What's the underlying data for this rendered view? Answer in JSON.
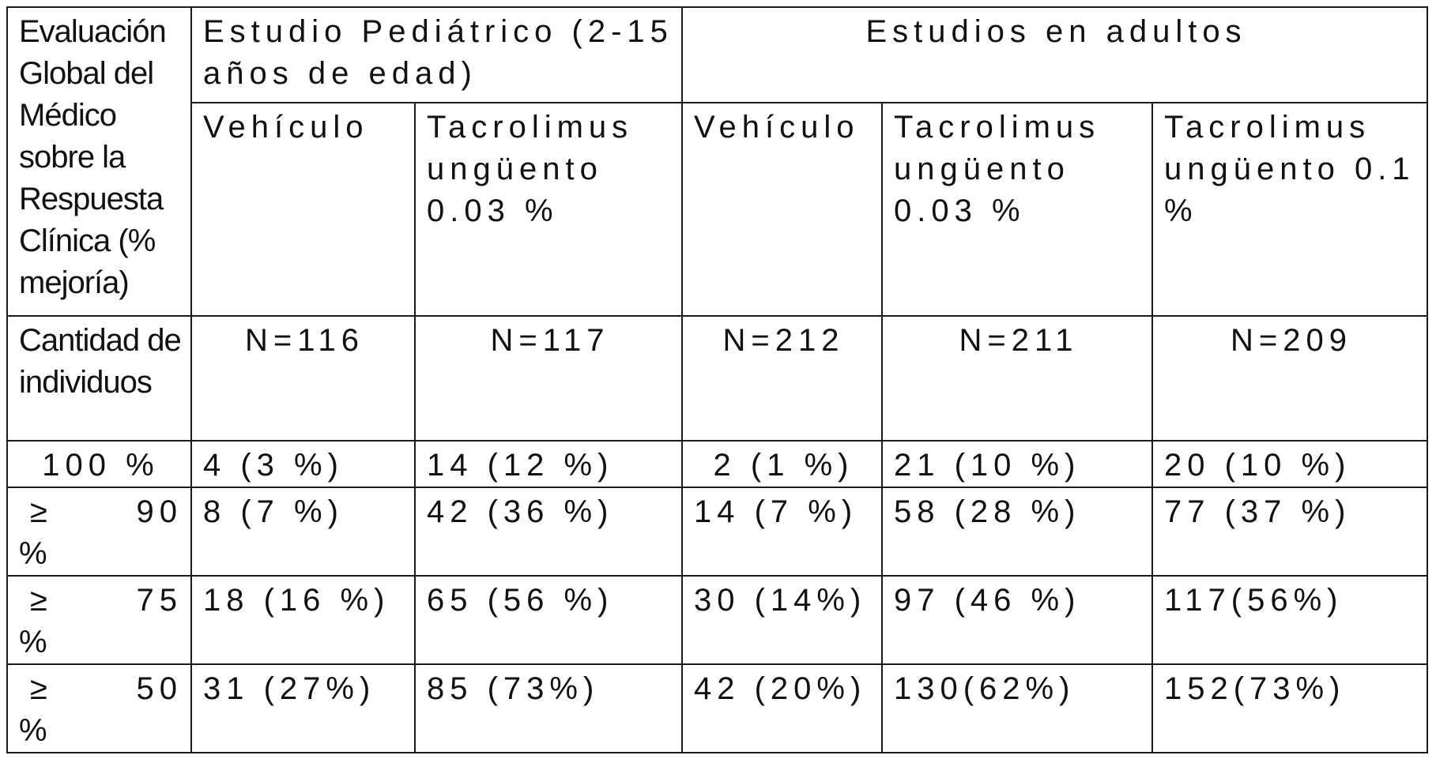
{
  "header": {
    "row_label": "Evaluación Global del Médico sobre la Respuesta Clínica (% mejoría)",
    "groups": [
      {
        "label": "Estudio Pediátrico (2-15 años de edad)"
      },
      {
        "label": "Estudios en adultos"
      }
    ],
    "columns": [
      {
        "label": "Vehículo"
      },
      {
        "label": "Tacrolimus ungüento 0.03 %"
      },
      {
        "label": "Vehículo"
      },
      {
        "label": "Tacrolimus ungüento 0.03 %"
      },
      {
        "label": "Tacrolimus ungüento 0.1 %"
      }
    ]
  },
  "n_row": {
    "label": "Cantidad de individuos",
    "values": [
      "N=116",
      "N=117",
      "N=212",
      "N=211",
      "N=209"
    ]
  },
  "rows": [
    {
      "label": "100 %",
      "cells": [
        "4 (3 %)",
        "14 (12 %)",
        "2 (1 %)",
        "21 (10 %)",
        "20 (10 %)"
      ]
    },
    {
      "symbol": "≥",
      "number": "90",
      "unit": "%",
      "cells": [
        "8 (7 %)",
        "42 (36 %)",
        "14 (7 %)",
        "58 (28 %)",
        "77 (37 %)"
      ]
    },
    {
      "symbol": "≥",
      "number": "75",
      "unit": "%",
      "cells": [
        "18 (16 %)",
        "65 (56 %)",
        "30 (14%)",
        "97 (46 %)",
        "117(56%)"
      ]
    },
    {
      "symbol": "≥",
      "number": "50",
      "unit": "%",
      "cells": [
        "31 (27%)",
        "85 (73%)",
        "42 (20%)",
        "130(62%)",
        "152(73%)"
      ]
    }
  ]
}
